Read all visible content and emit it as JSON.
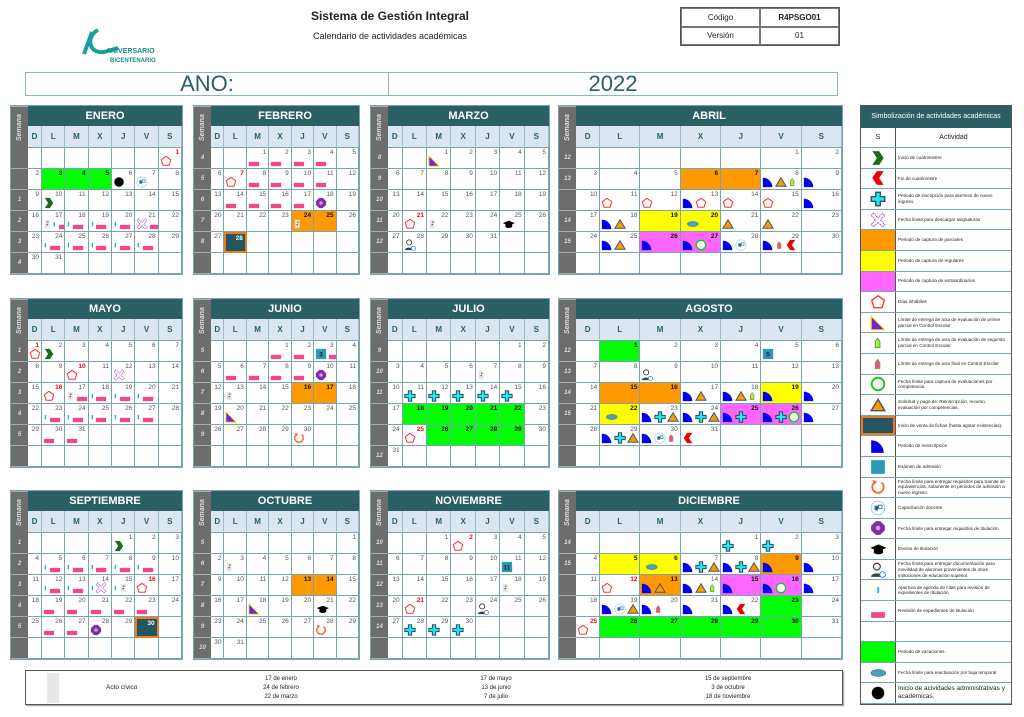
{
  "header": {
    "title": "Sistema de Gestión Integral",
    "subtitle": "Calendario de actividades académicas",
    "code_label": "Código",
    "code_value": "R4PSGO01",
    "version_label": "Versión",
    "version_value": "01",
    "logo_text": "ANIVERSARIO BICENTENARIO"
  },
  "year": {
    "label": "ANO:",
    "value": "2022"
  },
  "weekday_headers": [
    "D",
    "L",
    "M",
    "X",
    "J",
    "V",
    "S"
  ],
  "semana_label": "Semana",
  "colors": {
    "orange": "#ff9900",
    "yellow": "#ffff00",
    "magenta": "#ff66ff",
    "green": "#00ff00",
    "navy": "#245560",
    "teal": "#2a5f66"
  },
  "months": [
    {
      "name": "ENERO",
      "index": 0,
      "weeks": [
        "",
        "",
        "1",
        "2",
        "3",
        "4"
      ],
      "red": [
        1
      ],
      "fills": {
        "3": "green",
        "4": "green",
        "5": "green"
      },
      "icons": {
        "1": [
          "pentagon"
        ],
        "6": [
          "black-dot"
        ],
        "7": [
          "training"
        ],
        "10": [
          "start-chevron"
        ],
        "17": [
          "civic-flag",
          "appointment-bar",
          "review-bar"
        ],
        "18": [
          "appointment-bar",
          "review-bar"
        ],
        "19": [
          "appointment-bar",
          "review-bar"
        ],
        "20": [
          "appointment-bar",
          "review-bar"
        ],
        "21": [
          "dotted-x",
          "review-bar"
        ],
        "24": [
          "appointment-bar",
          "review-bar"
        ],
        "25": [
          "appointment-bar",
          "review-bar"
        ],
        "26": [
          "appointment-bar",
          "review-bar"
        ],
        "27": [
          "appointment-bar",
          "review-bar"
        ],
        "28": [
          "appointment-bar",
          "review-bar"
        ]
      }
    },
    {
      "name": "FEBRERO",
      "index": 1,
      "weeks": [
        "4",
        "5",
        "6",
        "7",
        "8",
        ""
      ],
      "red": [
        7
      ],
      "fills": {
        "24": "orange",
        "25": "orange",
        "28": "navy"
      },
      "icons": {
        "1": [
          "review-bar"
        ],
        "2": [
          "review-bar"
        ],
        "3": [
          "review-bar"
        ],
        "4": [
          "review-bar"
        ],
        "7": [
          "pentagon"
        ],
        "8": [
          "review-bar"
        ],
        "9": [
          "review-bar"
        ],
        "10": [
          "review-bar"
        ],
        "11": [
          "review-bar"
        ],
        "14": [
          "review-bar"
        ],
        "15": [
          "review-bar"
        ],
        "16": [
          "review-bar"
        ],
        "17": [
          "review-bar"
        ],
        "18": [
          "octagon"
        ],
        "24": [
          "civic-flag"
        ]
      }
    },
    {
      "name": "MARZO",
      "index": 2,
      "weeks": [
        "8",
        "9",
        "10",
        "11",
        "12",
        ""
      ],
      "red": [
        21
      ],
      "fills": {},
      "icons": {
        "1": [
          "purple-triangle"
        ],
        "21": [
          "pentagon"
        ],
        "22": [
          "civic-flag"
        ],
        "25": [
          "graduation-cap"
        ],
        "28": [
          "mobility-person"
        ]
      }
    },
    {
      "name": "ABRIL",
      "index": 3,
      "weeks": [
        "12",
        "13",
        "",
        "14",
        "15",
        ""
      ],
      "red": [],
      "fills": {
        "6": "orange",
        "7": "orange",
        "19": "yellow",
        "20": "yellow",
        "26": "magenta",
        "27": "magenta"
      },
      "icons": {
        "8": [
          "quarter-circle",
          "orange-triangle",
          "green-tag"
        ],
        "9": [
          "quarter-circle"
        ],
        "11": [
          "pentagon"
        ],
        "12": [
          "pentagon"
        ],
        "13": [
          "quarter-circle",
          "pentagon"
        ],
        "14": [
          "pentagon"
        ],
        "15": [
          "pentagon"
        ],
        "16": [
          "quarter-circle"
        ],
        "18": [
          "quarter-circle",
          "orange-triangle"
        ],
        "20": [
          "teal-oval"
        ],
        "21": [
          "orange-triangle"
        ],
        "22": [
          "orange-triangle"
        ],
        "25": [
          "quarter-circle",
          "orange-triangle"
        ],
        "26": [
          "quarter-circle"
        ],
        "27": [
          "quarter-circle",
          "green-ring"
        ],
        "28": [
          "quarter-circle",
          "training"
        ],
        "29": [
          "quarter-circle",
          "pink-tag",
          "end-chevron"
        ]
      }
    },
    {
      "name": "MAYO",
      "index": 4,
      "weeks": [
        "1",
        "2",
        "3",
        "4",
        "5",
        ""
      ],
      "red": [
        1,
        10,
        16
      ],
      "fills": {},
      "icons": {
        "1": [
          "pentagon"
        ],
        "2": [
          "start-chevron"
        ],
        "10": [
          "pentagon"
        ],
        "12": [
          "dotted-x"
        ],
        "16": [
          "pentagon"
        ],
        "17": [
          "civic-flag",
          "review-bar"
        ],
        "18": [
          "appointment-bar",
          "review-bar"
        ],
        "19": [
          "appointment-bar",
          "review-bar"
        ],
        "20": [
          "appointment-bar",
          "review-bar"
        ],
        "23": [
          "appointment-bar",
          "review-bar"
        ],
        "24": [
          "appointment-bar",
          "review-bar"
        ],
        "25": [
          "appointment-bar",
          "review-bar"
        ],
        "26": [
          "appointment-bar",
          "review-bar"
        ],
        "27": [
          "appointment-bar",
          "review-bar"
        ],
        "30": [
          "review-bar"
        ],
        "31": [
          "review-bar"
        ]
      }
    },
    {
      "name": "JUNIO",
      "index": 5,
      "weeks": [
        "5",
        "6",
        "7",
        "8",
        "9",
        ""
      ],
      "red": [],
      "fills": {
        "16": "orange",
        "17": "orange"
      },
      "exam": {
        "3": "3"
      },
      "icons": {
        "1": [
          "review-bar"
        ],
        "2": [
          "review-bar"
        ],
        "3": [
          "exam-square",
          "review-bar"
        ],
        "6": [
          "review-bar"
        ],
        "7": [
          "review-bar"
        ],
        "8": [
          "review-bar"
        ],
        "9": [
          "review-bar"
        ],
        "10": [
          "octagon"
        ],
        "13": [
          "civic-flag"
        ],
        "20": [
          "purple-triangle"
        ],
        "30": [
          "circular-arrow"
        ]
      }
    },
    {
      "name": "JULIO",
      "index": 6,
      "weeks": [
        "9",
        "10",
        "11",
        "",
        "",
        "12"
      ],
      "red": [
        25
      ],
      "fills": {
        "18": "green",
        "19": "green",
        "20": "green",
        "21": "green",
        "22": "green",
        "26": "green",
        "27": "green",
        "28": "green",
        "29": "green"
      },
      "icons": {
        "7": [
          "civic-flag"
        ],
        "11": [
          "cyan-cross"
        ],
        "12": [
          "cyan-cross"
        ],
        "13": [
          "cyan-cross"
        ],
        "14": [
          "cyan-cross"
        ],
        "15": [
          "cyan-cross"
        ],
        "25": [
          "pentagon"
        ]
      }
    },
    {
      "name": "AGOSTO",
      "index": 7,
      "weeks": [
        "12",
        "13",
        "14",
        "15",
        "",
        ""
      ],
      "red": [],
      "fills": {
        "1": "green",
        "15": "orange",
        "16": "orange",
        "19": "yellow",
        "22": "yellow",
        "25": "magenta",
        "26": "magenta"
      },
      "exam": {
        "5": "5"
      },
      "icons": {
        "5": [
          "exam-square"
        ],
        "9": [
          "mobility-person"
        ],
        "17": [
          "quarter-circle",
          "orange-triangle"
        ],
        "18": [
          "quarter-circle",
          "orange-triangle",
          "green-tag"
        ],
        "19": [
          "quarter-circle"
        ],
        "20": [
          "quarter-circle"
        ],
        "22": [
          "teal-oval"
        ],
        "23": [
          "quarter-circle",
          "cyan-cross",
          "orange-triangle"
        ],
        "24": [
          "quarter-circle",
          "cyan-cross",
          "orange-triangle"
        ],
        "25": [
          "quarter-circle",
          "cyan-cross"
        ],
        "26": [
          "quarter-circle",
          "cyan-cross",
          "green-ring"
        ],
        "27": [
          "quarter-circle"
        ],
        "29": [
          "quarter-circle",
          "cyan-cross",
          "orange-triangle"
        ],
        "30": [
          "quarter-circle",
          "training",
          "pink-tag"
        ],
        "31": [
          "end-chevron"
        ]
      }
    },
    {
      "name": "SEPTIEMBRE",
      "index": 8,
      "weeks": [
        "1",
        "2",
        "3",
        "4",
        "5",
        ""
      ],
      "red": [
        16
      ],
      "fills": {
        "30": "navy"
      },
      "icons": {
        "1": [
          "start-chevron"
        ],
        "5": [
          "appointment-bar",
          "review-bar"
        ],
        "6": [
          "appointment-bar",
          "review-bar"
        ],
        "7": [
          "appointment-bar",
          "review-bar"
        ],
        "8": [
          "appointment-bar",
          "review-bar"
        ],
        "9": [
          "appointment-bar",
          "review-bar"
        ],
        "12": [
          "appointment-bar",
          "review-bar"
        ],
        "13": [
          "appointment-bar",
          "review-bar"
        ],
        "14": [
          "appointment-bar",
          "dotted-x"
        ],
        "15": [
          "appointment-bar",
          "civic-flag"
        ],
        "16": [
          "pentagon"
        ],
        "19": [
          "review-bar"
        ],
        "20": [
          "review-bar"
        ],
        "21": [
          "review-bar"
        ],
        "22": [
          "review-bar"
        ],
        "23": [
          "review-bar"
        ],
        "26": [
          "review-bar"
        ],
        "27": [
          "review-bar"
        ],
        "28": [
          "octagon"
        ]
      }
    },
    {
      "name": "OCTUBRE",
      "index": 9,
      "weeks": [
        "5",
        "6",
        "7",
        "8",
        "9",
        "10"
      ],
      "red": [],
      "fills": {
        "13": "orange",
        "14": "orange"
      },
      "icons": {
        "3": [
          "civic-flag"
        ],
        "18": [
          "purple-triangle"
        ],
        "21": [
          "graduation-cap"
        ],
        "28": [
          "circular-arrow"
        ]
      }
    },
    {
      "name": "NOVIEMBRE",
      "index": 10,
      "weeks": [
        "10",
        "11",
        "12",
        "13",
        "14",
        ""
      ],
      "red": [
        2,
        21
      ],
      "fills": {},
      "exam": {
        "11": "11"
      },
      "icons": {
        "2": [
          "pentagon"
        ],
        "11": [
          "exam-square"
        ],
        "18": [
          "civic-flag"
        ],
        "21": [
          "pentagon"
        ],
        "24": [
          "mobility-person"
        ],
        "28": [
          "cyan-cross"
        ],
        "29": [
          "cyan-cross"
        ],
        "30": [
          "cyan-cross"
        ]
      }
    },
    {
      "name": "DICIEMBRE",
      "index": 11,
      "weeks": [
        "14",
        "15",
        "",
        "",
        "",
        ""
      ],
      "red": [
        12,
        25
      ],
      "fills": {
        "5": "yellow",
        "6": "yellow",
        "9": "orange",
        "13": "orange",
        "15": "magenta",
        "16": "magenta",
        "23": "green",
        "26": "green",
        "27": "green",
        "28": "green",
        "29": "green",
        "30": "green"
      },
      "icons": {
        "1": [
          "cyan-cross"
        ],
        "2": [
          "cyan-cross"
        ],
        "6": [
          "teal-oval"
        ],
        "7": [
          "quarter-circle",
          "cyan-cross",
          "orange-triangle"
        ],
        "8": [
          "quarter-circle",
          "cyan-cross",
          "orange-triangle"
        ],
        "9": [
          "quarter-circle"
        ],
        "10": [
          "quarter-circle"
        ],
        "12": [
          "pentagon"
        ],
        "13": [
          "quarter-circle",
          "orange-triangle"
        ],
        "14": [
          "quarter-circle",
          "orange-triangle",
          "green-tag"
        ],
        "15": [
          "quarter-circle"
        ],
        "16": [
          "quarter-circle",
          "green-ring"
        ],
        "17": [
          "quarter-circle"
        ],
        "19": [
          "quarter-circle",
          "training",
          "orange-triangle"
        ],
        "20": [
          "quarter-circle",
          "pink-tag"
        ],
        "21": [
          "quarter-circle"
        ],
        "22": [
          "quarter-circle",
          "end-chevron"
        ],
        "25": [
          "pentagon"
        ]
      }
    }
  ],
  "legend": {
    "title": "Simbolización de actividades académicas",
    "col_symbol": "S",
    "col_activity": "Actividad",
    "items": [
      {
        "icon": "start-chevron",
        "text": "Inicio de cuatrimestre"
      },
      {
        "icon": "end-chevron",
        "text": "Fin de cuatrimestre"
      },
      {
        "icon": "cyan-cross",
        "text": "Periodo de inscripción para alumnos de nuevo ingreso."
      },
      {
        "icon": "dotted-x",
        "text": "Fecha límite para descargar asignaturas"
      },
      {
        "icon": "fill-orange",
        "text": "Periodo de captura de parciales"
      },
      {
        "icon": "fill-yellow",
        "text": "Periodo de captura de regulares"
      },
      {
        "icon": "fill-magenta",
        "text": "Periodo de captura de extraordinarios"
      },
      {
        "icon": "pentagon",
        "text": "Días inhábiles"
      },
      {
        "icon": "purple-triangle",
        "text": "Límite de entrega de acta de evaluación de primer parcial en Control Escolar"
      },
      {
        "icon": "green-tag",
        "text": "Límite de entrega de acta de evaluación de segundo parcial en Control Escolar"
      },
      {
        "icon": "pink-tag",
        "text": "Límite de entrega de acta final en Control Escolar"
      },
      {
        "icon": "green-ring",
        "text": "Fecha límite para captura de evaluaciones por competencia"
      },
      {
        "icon": "orange-triangle",
        "text": "Solicitud y pago de: Reinscripción, recurso, evaluación por competencias."
      },
      {
        "icon": "fill-navy",
        "text": "Inicio de venta de fichas (hasta agotar existencias)."
      },
      {
        "icon": "quarter-circle",
        "text": "Periodo de reinscripción"
      },
      {
        "icon": "exam-square",
        "text": "Exámen de admisión"
      },
      {
        "icon": "circular-arrow",
        "text": "Fecha límite para entregar requisitos para tramite de equivalencias, solamente en periodos de admisión a nuevo ingreso."
      },
      {
        "icon": "training",
        "text": "Capacitación docente"
      },
      {
        "icon": "octagon",
        "text": "Fecha límite para entregar requisitos de titulación"
      },
      {
        "icon": "graduation-cap",
        "text": "Evento de titulación"
      },
      {
        "icon": "mobility-person",
        "text": "Fecha límite para entregar documentación para movilidad de alumnos provenientes de otras intituciones de educación superior."
      },
      {
        "icon": "appointment-bar",
        "text": "Apertura de agenda de citas para revisión de expedientes de titulación"
      },
      {
        "icon": "review-bar",
        "text": "Revisión de expedientes de titulación"
      },
      {
        "icon": "",
        "text": ""
      },
      {
        "icon": "fill-green",
        "text": "Periodo de vacaciones."
      },
      {
        "icon": "teal-oval",
        "text": "Fecha límite para reactivación por baja temporal"
      },
      {
        "icon": "black-dot",
        "text": "Inicio de acividades administrativas y académicas."
      }
    ]
  },
  "civic": {
    "label": "Acto cívico",
    "dates": [
      [
        "17 de enero",
        "24 de febrero",
        "22 de marzo"
      ],
      [
        "17 de mayo",
        "13 de junio",
        "7 de julio"
      ],
      [
        "15 de septiembre",
        "3 de octubre",
        "18 de noviembre"
      ]
    ]
  }
}
